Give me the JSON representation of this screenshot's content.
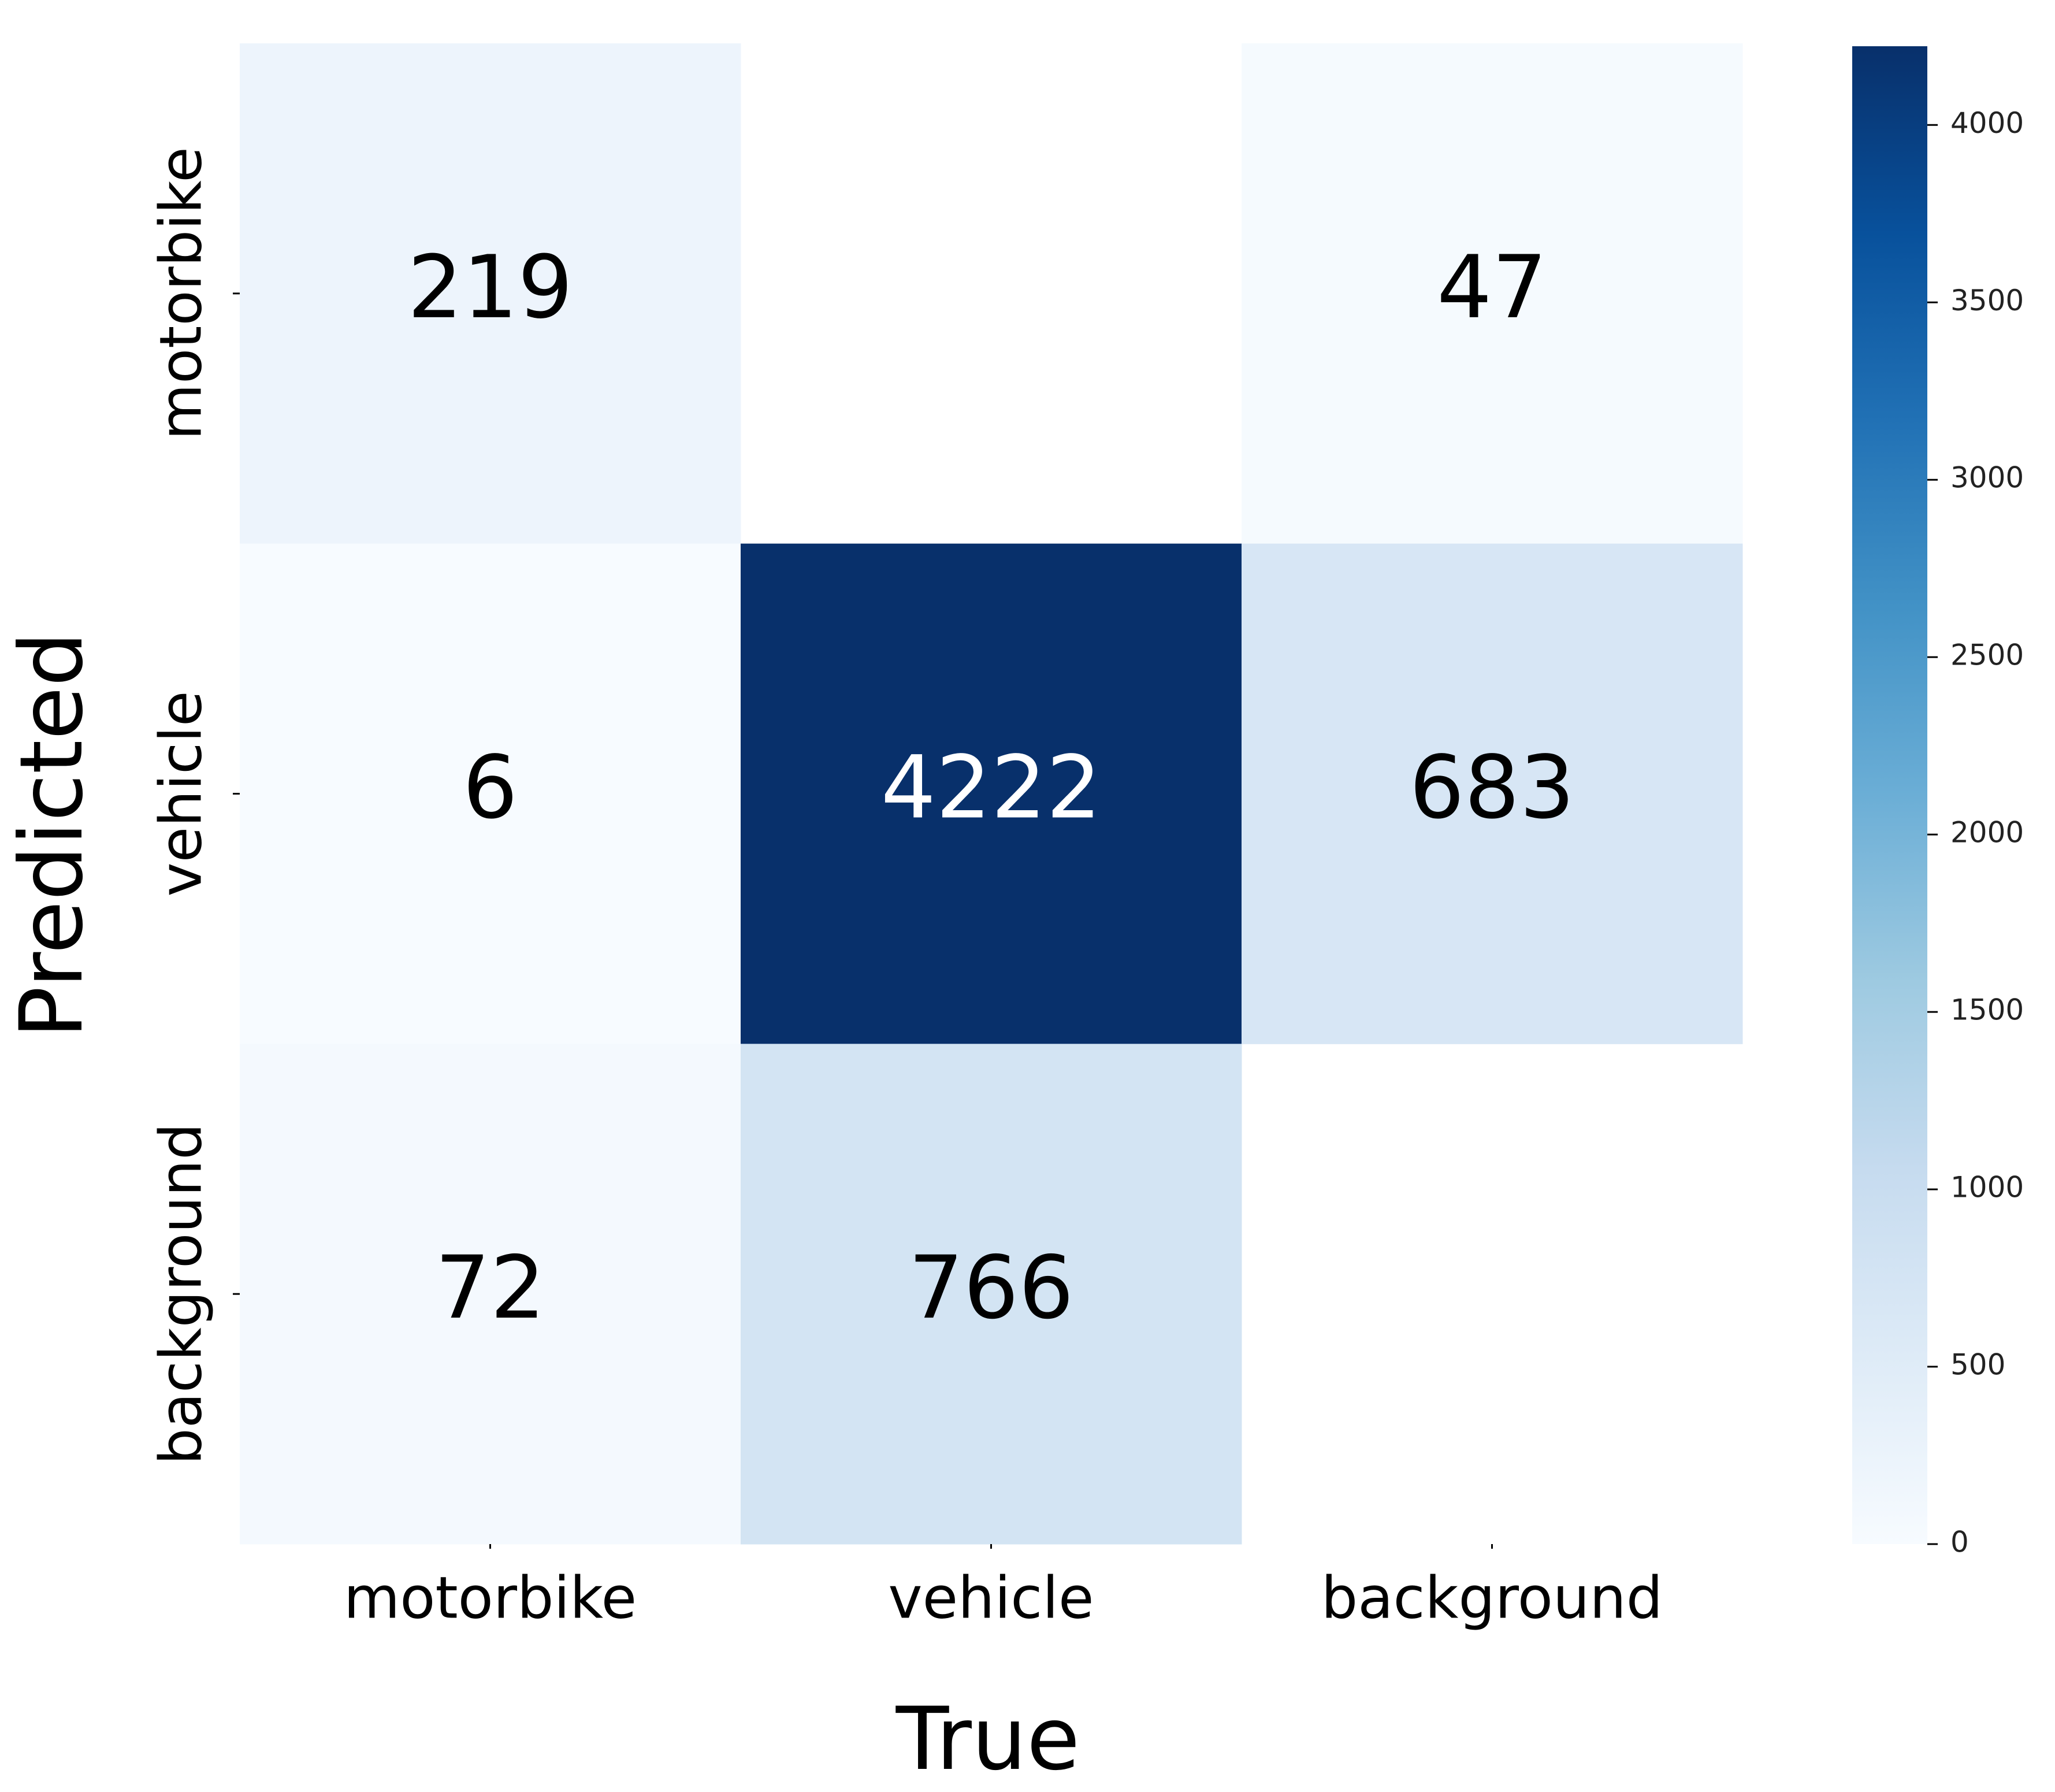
{
  "chart_data": {
    "type": "heatmap",
    "x_label": "True",
    "y_label": "Predicted",
    "x_categories": [
      "motorbike",
      "vehicle",
      "background"
    ],
    "y_categories": [
      "motorbike",
      "vehicle",
      "background"
    ],
    "values": [
      [
        219,
        null,
        47
      ],
      [
        6,
        4222,
        683
      ],
      [
        72,
        766,
        null
      ]
    ],
    "zlim": [
      0,
      4222
    ],
    "zticks": [
      0,
      500,
      1000,
      1500,
      2000,
      2500,
      3000,
      3500,
      4000
    ],
    "colormap": [
      "#f7fbff",
      "#deebf7",
      "#c6dbef",
      "#9ecae1",
      "#6baed6",
      "#4292c6",
      "#2171b5",
      "#08519c",
      "#08306b"
    ]
  }
}
